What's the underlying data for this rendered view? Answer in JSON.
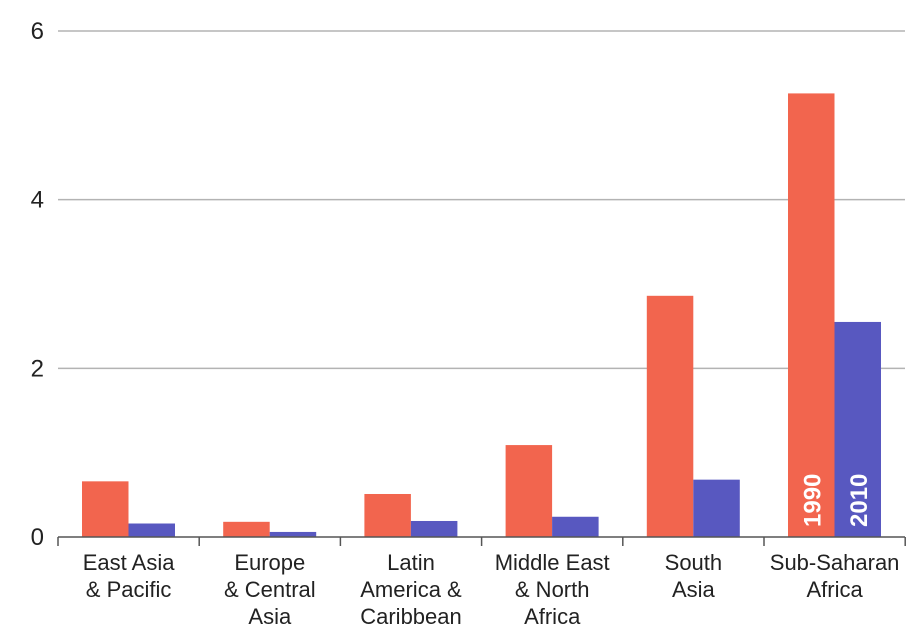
{
  "chart_data": {
    "type": "bar",
    "categories": [
      [
        "East Asia",
        "& Pacific"
      ],
      [
        "Europe",
        "& Central",
        "Asia"
      ],
      [
        "Latin",
        "America &",
        "Caribbean"
      ],
      [
        "Middle East",
        "& North",
        "Africa"
      ],
      [
        "South",
        "Asia"
      ],
      [
        "Sub-Saharan",
        "Africa"
      ]
    ],
    "series": [
      {
        "name": "1990",
        "color": "#f2654e",
        "values": [
          0.66,
          0.18,
          0.51,
          1.09,
          2.86,
          5.26
        ]
      },
      {
        "name": "2010",
        "color": "#5858c0",
        "values": [
          0.16,
          0.06,
          0.19,
          0.24,
          0.68,
          2.55
        ]
      }
    ],
    "y_ticks": [
      0,
      2,
      4,
      6
    ],
    "ylim": [
      0,
      6
    ],
    "grid": true,
    "title": "",
    "xlabel": "",
    "ylabel": "",
    "legend": "series names printed vertically inside last category bars"
  }
}
